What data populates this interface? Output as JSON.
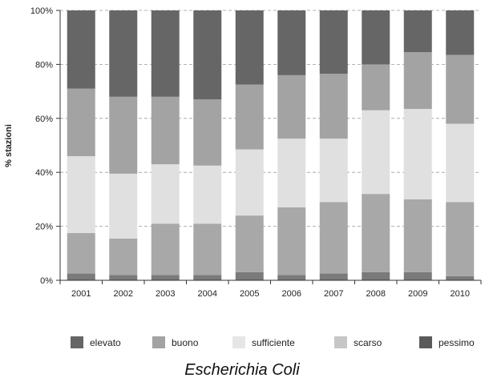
{
  "chart_data": {
    "type": "bar",
    "stacked": true,
    "caption": "Escherichia Coli",
    "ylabel": "% stazioni",
    "xlabel": "",
    "ylim": [
      0,
      100
    ],
    "y_ticks": [
      "0%",
      "20%",
      "40%",
      "60%",
      "80%",
      "100%"
    ],
    "grid": "horizontal dashed",
    "legend_position": "bottom",
    "categories": [
      "2001",
      "2002",
      "2003",
      "2004",
      "2005",
      "2006",
      "2007",
      "2008",
      "2009",
      "2010"
    ],
    "series": [
      {
        "name": "pessimo",
        "color": "#7a7a7a",
        "values": [
          2.5,
          2,
          2,
          2,
          3,
          2,
          2.5,
          3,
          3,
          1.5
        ]
      },
      {
        "name": "scarso",
        "color": "#a8a8a8",
        "values": [
          15,
          13.5,
          19,
          19,
          21,
          25,
          26.5,
          29,
          27,
          27.5
        ]
      },
      {
        "name": "sufficiente",
        "color": "#e0e0e0",
        "values": [
          28.5,
          24,
          22,
          21.5,
          24.5,
          25.5,
          23.5,
          31,
          33.5,
          29
        ]
      },
      {
        "name": "buono",
        "color": "#a3a3a3",
        "values": [
          25,
          28.5,
          25,
          24.5,
          24,
          23.5,
          24,
          17,
          21,
          25.5
        ]
      },
      {
        "name": "elevato",
        "color": "#666666",
        "values": [
          29,
          32,
          32,
          33,
          27.5,
          24,
          23.5,
          20,
          15.5,
          16.5
        ]
      }
    ],
    "legend": [
      {
        "name": "elevato",
        "color": "#666666"
      },
      {
        "name": "buono",
        "color": "#a3a3a3"
      },
      {
        "name": "sufficiente",
        "color": "#e6e6e6"
      },
      {
        "name": "scarso",
        "color": "#c6c6c6"
      },
      {
        "name": "pessimo",
        "color": "#5a5a5a"
      }
    ]
  }
}
